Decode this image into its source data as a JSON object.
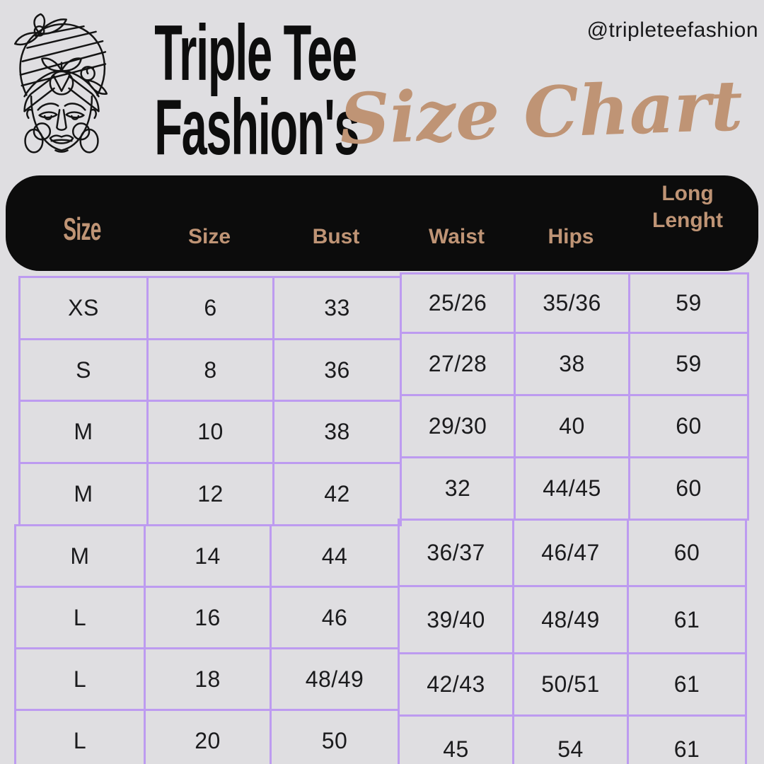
{
  "header": {
    "handle": "@tripleteefashion",
    "brand_line1": "Triple Tee",
    "brand_line2": "Fashion's",
    "script_title": "Size Chart",
    "logo_icon": "woman-headwrap-line-art"
  },
  "colors": {
    "background": "#dfdee1",
    "header_bar": "#0c0c0c",
    "accent_tan": "#bf9475",
    "table_border": "#bd9bf0",
    "cell_text": "#1b1b1d"
  },
  "chart_data": {
    "type": "table",
    "columns": [
      "Size",
      "Size",
      "Bust",
      "Waist",
      "Hips",
      "Long Lenght"
    ],
    "rows": [
      [
        "XS",
        "6",
        "33",
        "25/26",
        "35/36",
        "59"
      ],
      [
        "S",
        "8",
        "36",
        "27/28",
        "38",
        "59"
      ],
      [
        "M",
        "10",
        "38",
        "29/30",
        "40",
        "60"
      ],
      [
        "M",
        "12",
        "42",
        "32",
        "44/45",
        "60"
      ],
      [
        "M",
        "14",
        "44",
        "36/37",
        "46/47",
        "60"
      ],
      [
        "L",
        "16",
        "46",
        "39/40",
        "48/49",
        "61"
      ],
      [
        "L",
        "18",
        "48/49",
        "42/43",
        "50/51",
        "61"
      ],
      [
        "L",
        "20",
        "50",
        "45",
        "54",
        "61"
      ]
    ]
  },
  "table": {
    "headers": [
      "Size",
      "Size",
      "Bust",
      "Waist",
      "Hips",
      "Long Lenght"
    ],
    "rows": [
      [
        "XS",
        "6",
        "33",
        "25/26",
        "35/36",
        "59"
      ],
      [
        "S",
        "8",
        "36",
        "27/28",
        "38",
        "59"
      ],
      [
        "M",
        "10",
        "38",
        "29/30",
        "40",
        "60"
      ],
      [
        "M",
        "12",
        "42",
        "32",
        "44/45",
        "60"
      ],
      [
        "M",
        "14",
        "44",
        "36/37",
        "46/47",
        "60"
      ],
      [
        "L",
        "16",
        "46",
        "39/40",
        "48/49",
        "61"
      ],
      [
        "L",
        "18",
        "48/49",
        "42/43",
        "50/51",
        "61"
      ],
      [
        "L",
        "20",
        "50",
        "45",
        "54",
        "61"
      ]
    ]
  }
}
